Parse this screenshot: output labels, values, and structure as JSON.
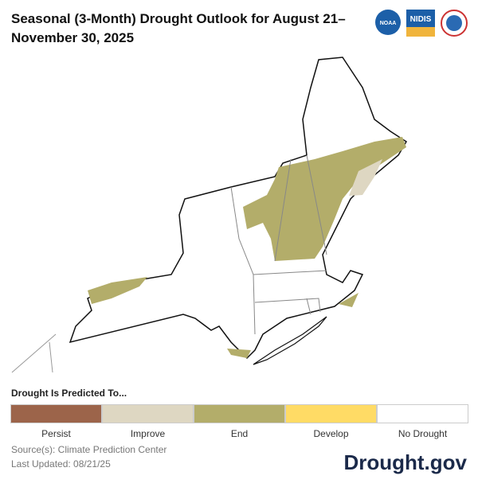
{
  "header": {
    "title": "Seasonal (3-Month) Drought Outlook for August 21–November 30, 2025",
    "logos": [
      "NOAA",
      "NIDIS"
    ]
  },
  "legend": {
    "title": "Drought Is Predicted To...",
    "items": [
      {
        "label": "Persist",
        "color": "#9c644a"
      },
      {
        "label": "Improve",
        "color": "#ded7c2"
      },
      {
        "label": "End",
        "color": "#b3ad6a"
      },
      {
        "label": "Develop",
        "color": "#ffdb65"
      },
      {
        "label": "No Drought",
        "color": "#ffffff"
      }
    ]
  },
  "footer": {
    "source": "Source(s): Climate Prediction Center",
    "updated": "Last Updated: 08/21/25",
    "brand": "Drought.gov"
  }
}
